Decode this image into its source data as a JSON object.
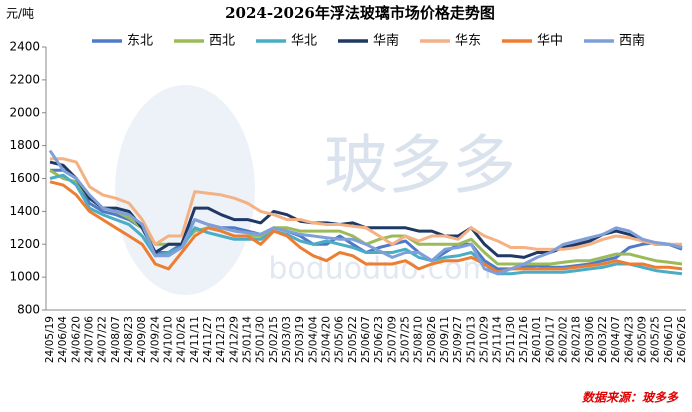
{
  "chart_data": {
    "type": "line",
    "title": "2024-2026年浮法玻璃市场价格走势图",
    "y_unit": "元/吨",
    "source": "数据来源：玻多多",
    "watermark": {
      "logo_text": "玻多多",
      "url": "boduoduo.com"
    },
    "categories": [
      "24/05/19",
      "24/06/04",
      "24/06/20",
      "24/07/06",
      "24/07/22",
      "24/08/07",
      "24/08/23",
      "24/09/08",
      "24/09/24",
      "24/10/10",
      "24/10/26",
      "24/11/11",
      "24/11/27",
      "24/12/13",
      "24/12/29",
      "25/01/14",
      "25/01/30",
      "25/02/15",
      "25/03/03",
      "25/03/19",
      "25/04/04",
      "25/04/20",
      "25/05/06",
      "25/05/22",
      "25/06/07",
      "25/06/23",
      "25/07/09",
      "25/07/25",
      "25/08/10",
      "25/08/26",
      "25/09/11",
      "25/09/27",
      "25/10/13",
      "25/10/29",
      "25/11/14",
      "25/11/30",
      "25/12/16",
      "26/01/01",
      "26/01/17",
      "26/02/02",
      "26/02/18",
      "26/03/06",
      "26/03/22",
      "26/04/07",
      "26/04/23",
      "26/05/09",
      "26/05/25",
      "26/06/10",
      "26/06/26"
    ],
    "series": [
      {
        "name": "东北",
        "color": "#4f7ac7",
        "values": [
          1650,
          1650,
          1600,
          1450,
          1400,
          1380,
          1350,
          1300,
          1150,
          1150,
          1200,
          1350,
          1320,
          1300,
          1300,
          1280,
          1260,
          1300,
          1280,
          1250,
          1200,
          1200,
          1250,
          1200,
          1150,
          1180,
          1200,
          1220,
          1150,
          1100,
          1150,
          1200,
          1200,
          1100,
          1050,
          1050,
          1060,
          1070,
          1060,
          1060,
          1070,
          1080,
          1100,
          1120,
          1180,
          1200,
          1210,
          1200,
          1170
        ]
      },
      {
        "name": "西北",
        "color": "#9bbb59",
        "values": [
          1650,
          1600,
          1580,
          1480,
          1420,
          1400,
          1360,
          1300,
          1200,
          1200,
          1200,
          1280,
          1300,
          1280,
          1250,
          1250,
          1250,
          1300,
          1300,
          1280,
          1280,
          1280,
          1280,
          1250,
          1200,
          1230,
          1250,
          1250,
          1200,
          1200,
          1200,
          1200,
          1230,
          1150,
          1080,
          1080,
          1080,
          1080,
          1080,
          1090,
          1100,
          1100,
          1120,
          1140,
          1140,
          1120,
          1100,
          1090,
          1080
        ]
      },
      {
        "name": "华北",
        "color": "#4bacc6",
        "values": [
          1600,
          1620,
          1560,
          1420,
          1380,
          1350,
          1320,
          1250,
          1130,
          1150,
          1180,
          1300,
          1270,
          1250,
          1230,
          1230,
          1230,
          1280,
          1260,
          1220,
          1200,
          1220,
          1200,
          1180,
          1150,
          1150,
          1150,
          1170,
          1120,
          1100,
          1120,
          1130,
          1150,
          1080,
          1020,
          1020,
          1030,
          1030,
          1030,
          1030,
          1040,
          1050,
          1060,
          1080,
          1080,
          1060,
          1040,
          1030,
          1020
        ]
      },
      {
        "name": "华南",
        "color": "#1f3864",
        "values": [
          1700,
          1680,
          1600,
          1480,
          1420,
          1420,
          1400,
          1300,
          1150,
          1200,
          1200,
          1420,
          1420,
          1380,
          1350,
          1350,
          1330,
          1400,
          1380,
          1340,
          1330,
          1330,
          1320,
          1330,
          1300,
          1300,
          1300,
          1300,
          1280,
          1280,
          1250,
          1250,
          1300,
          1200,
          1130,
          1130,
          1120,
          1150,
          1150,
          1180,
          1200,
          1220,
          1260,
          1280,
          1260,
          1230,
          1200,
          1200,
          1180
        ]
      },
      {
        "name": "华东",
        "color": "#f4b183",
        "values": [
          1720,
          1720,
          1700,
          1550,
          1500,
          1480,
          1450,
          1350,
          1200,
          1250,
          1250,
          1520,
          1510,
          1500,
          1480,
          1450,
          1400,
          1380,
          1350,
          1350,
          1330,
          1320,
          1320,
          1310,
          1300,
          1250,
          1200,
          1250,
          1220,
          1250,
          1250,
          1230,
          1300,
          1250,
          1220,
          1180,
          1180,
          1170,
          1170,
          1170,
          1180,
          1200,
          1230,
          1250,
          1240,
          1220,
          1200,
          1200,
          1200
        ]
      },
      {
        "name": "华中",
        "color": "#ed7d31",
        "values": [
          1580,
          1560,
          1500,
          1400,
          1350,
          1300,
          1250,
          1200,
          1080,
          1050,
          1150,
          1250,
          1300,
          1280,
          1250,
          1250,
          1200,
          1280,
          1250,
          1180,
          1130,
          1100,
          1150,
          1130,
          1080,
          1080,
          1080,
          1100,
          1050,
          1080,
          1100,
          1100,
          1120,
          1080,
          1030,
          1050,
          1050,
          1050,
          1050,
          1050,
          1060,
          1070,
          1080,
          1100,
          1080,
          1080,
          1060,
          1060,
          1050
        ]
      },
      {
        "name": "西南",
        "color": "#7f9fd8",
        "values": [
          1770,
          1650,
          1600,
          1500,
          1420,
          1400,
          1380,
          1320,
          1130,
          1130,
          1180,
          1350,
          1320,
          1300,
          1280,
          1270,
          1260,
          1300,
          1280,
          1260,
          1250,
          1240,
          1230,
          1230,
          1200,
          1160,
          1120,
          1150,
          1150,
          1100,
          1170,
          1180,
          1200,
          1050,
          1020,
          1050,
          1080,
          1120,
          1150,
          1200,
          1220,
          1240,
          1260,
          1300,
          1280,
          1230,
          1210,
          1200,
          1180
        ]
      }
    ],
    "ylim": [
      800,
      2400
    ],
    "yticks": [
      800,
      1000,
      1200,
      1400,
      1600,
      1800,
      2000,
      2200,
      2400
    ]
  }
}
